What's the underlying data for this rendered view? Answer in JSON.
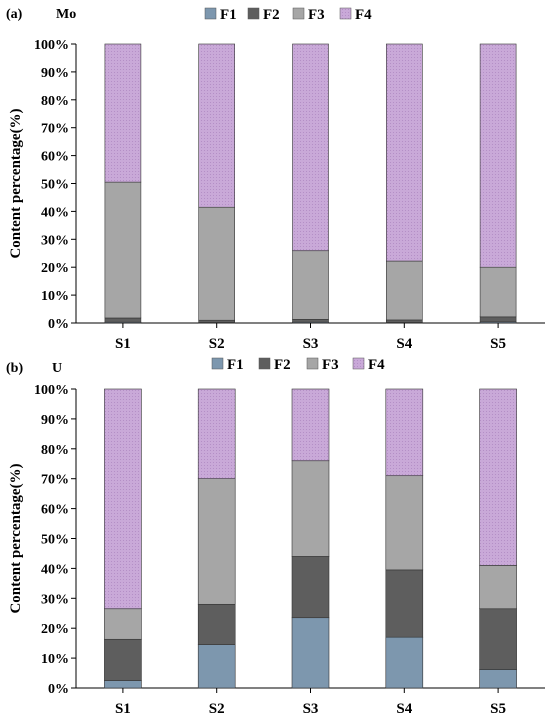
{
  "colors": {
    "F1": "#7d97ae",
    "F2": "#5e5e5e",
    "F3": "#a6a6a6",
    "F4": "#c8a7d6"
  },
  "chart_data": [
    {
      "type": "bar",
      "stacked": true,
      "panel_label": "(a)",
      "element_label": "Mo",
      "ylabel": "Content percentage(%)",
      "ylim": [
        0,
        100
      ],
      "yticks": [
        "0%",
        "10%",
        "20%",
        "30%",
        "40%",
        "50%",
        "60%",
        "70%",
        "80%",
        "90%",
        "100%"
      ],
      "categories": [
        "S1",
        "S2",
        "S3",
        "S4",
        "S5"
      ],
      "legend_position": "top",
      "series": [
        {
          "name": "F1",
          "values": [
            0.3,
            0.2,
            0.3,
            0.2,
            0.4
          ]
        },
        {
          "name": "F2",
          "values": [
            1.5,
            0.8,
            1.0,
            0.9,
            1.8
          ]
        },
        {
          "name": "F3",
          "values": [
            48.7,
            40.5,
            24.6,
            21.1,
            17.8
          ]
        },
        {
          "name": "F4",
          "values": [
            49.5,
            58.5,
            74.1,
            77.8,
            80.0
          ]
        }
      ]
    },
    {
      "type": "bar",
      "stacked": true,
      "panel_label": "(b)",
      "element_label": "U",
      "ylabel": "Content percentage(%)",
      "ylim": [
        0,
        100
      ],
      "yticks": [
        "0%",
        "10%",
        "20%",
        "30%",
        "40%",
        "50%",
        "60%",
        "70%",
        "80%",
        "90%",
        "100%"
      ],
      "categories": [
        "S1",
        "S2",
        "S3",
        "S4",
        "S5"
      ],
      "legend_position": "top",
      "series": [
        {
          "name": "F1",
          "values": [
            2.5,
            14.5,
            23.5,
            17.0,
            6.2
          ]
        },
        {
          "name": "F2",
          "values": [
            13.8,
            13.5,
            20.5,
            22.5,
            20.3
          ]
        },
        {
          "name": "F3",
          "values": [
            10.2,
            42.0,
            32.0,
            31.5,
            14.5
          ]
        },
        {
          "name": "F4",
          "values": [
            73.5,
            30.0,
            24.0,
            29.0,
            59.0
          ]
        }
      ]
    }
  ]
}
